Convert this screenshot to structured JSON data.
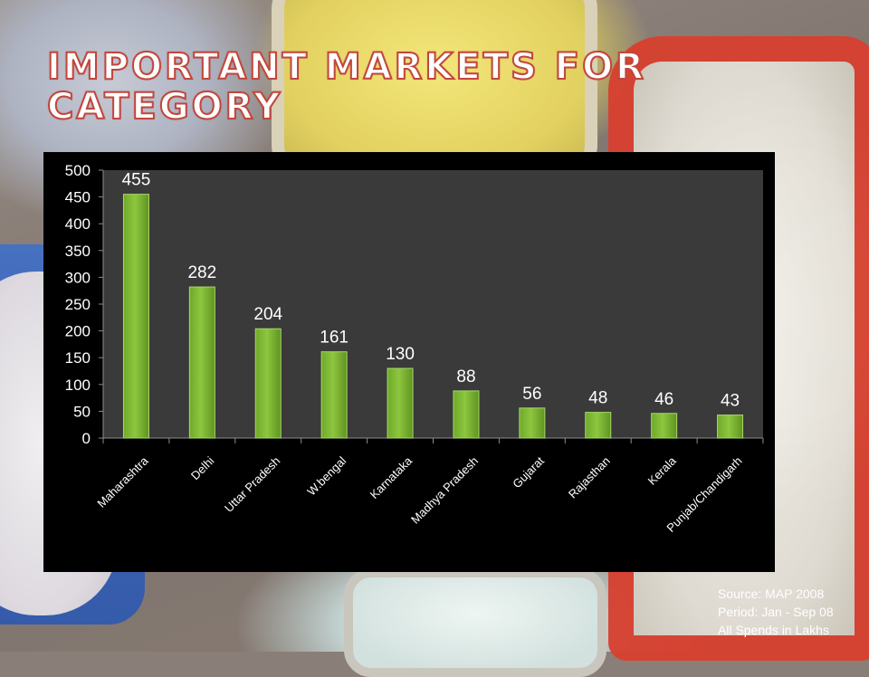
{
  "title_line1": "IMPORTANT MARKETS FOR",
  "title_line2": "CATEGORY",
  "source_note": {
    "line1": "Source: MAP 2008",
    "line2": "Period: Jan - Sep 08",
    "line3": "All Spends in Lakhs"
  },
  "chart_data": {
    "type": "bar",
    "title": "",
    "xlabel": "",
    "ylabel": "",
    "categories": [
      "Maharashtra",
      "Delhi",
      "Uttar Pradesh",
      "W.bengal",
      "Karnataka",
      "Madhya Pradesh",
      "Gujarat",
      "Rajasthan",
      "Kerala",
      "Punjab/Chandigarh"
    ],
    "values": [
      455,
      282,
      204,
      161,
      130,
      88,
      56,
      48,
      46,
      43
    ],
    "ylim": [
      0,
      500
    ],
    "yticks": [
      0,
      50,
      100,
      150,
      200,
      250,
      300,
      350,
      400,
      450,
      500
    ],
    "grid": false,
    "legend": "none",
    "bar_color": "#8dc63f",
    "plot_background": "#3a3a3a",
    "panel_background": "#000000",
    "text_color": "#ffffff"
  }
}
